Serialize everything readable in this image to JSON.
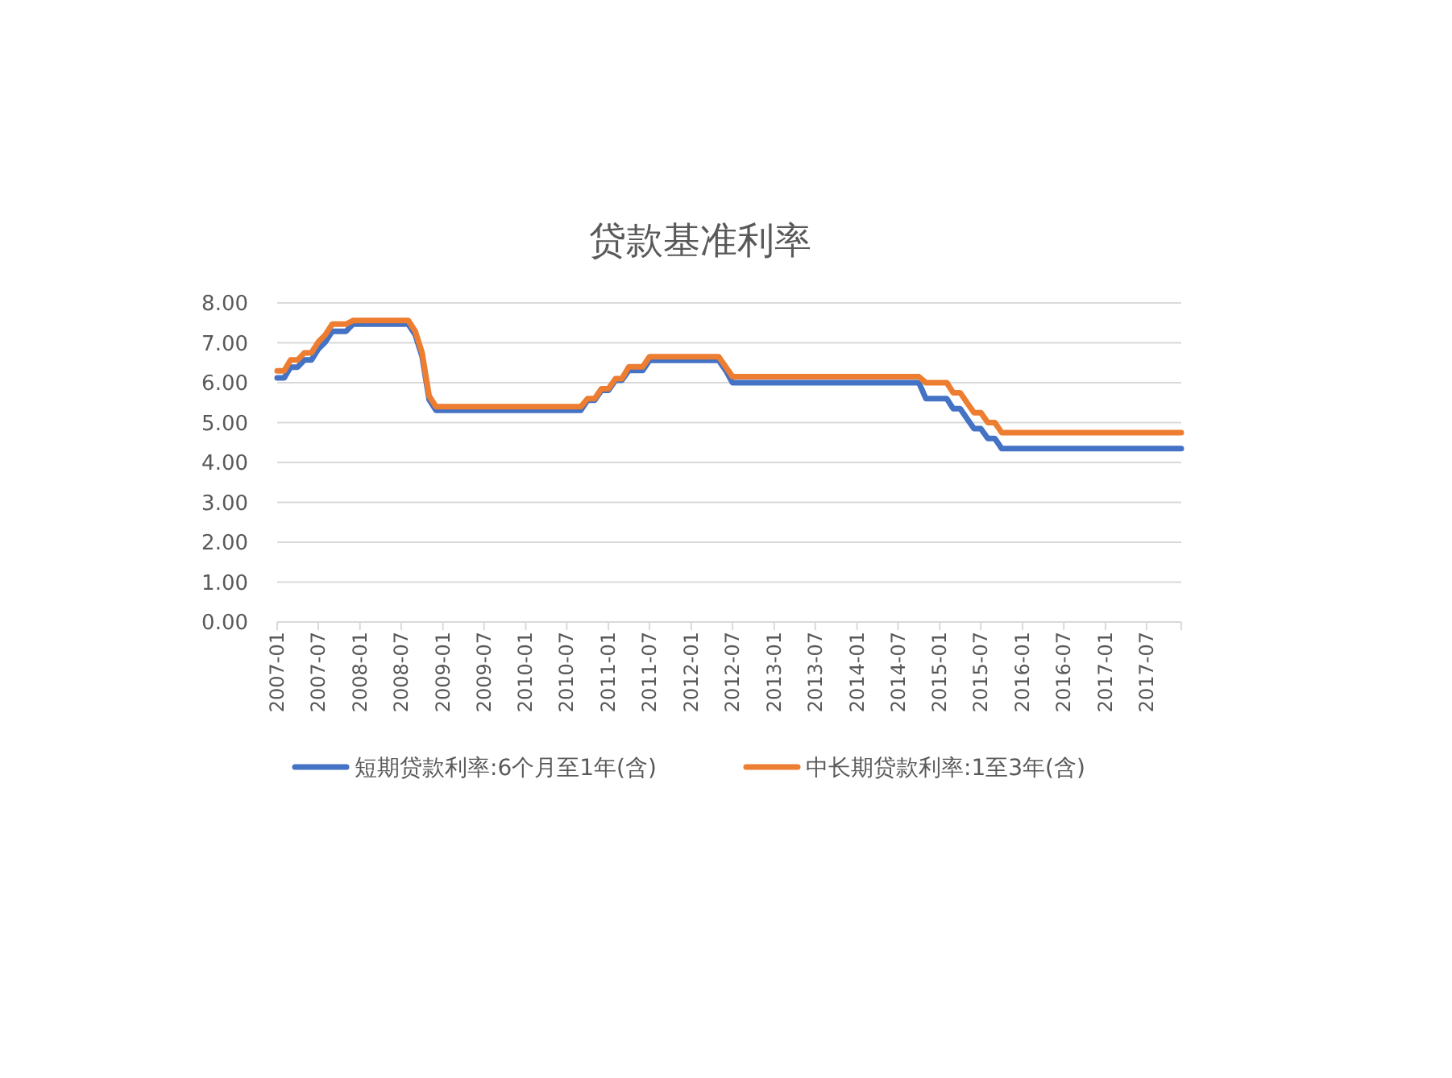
{
  "chart_data": {
    "type": "line",
    "title": "贷款基准利率",
    "x": [
      "2007-01",
      "2007-02",
      "2007-03",
      "2007-04",
      "2007-05",
      "2007-06",
      "2007-07",
      "2007-08",
      "2007-09",
      "2007-10",
      "2007-11",
      "2007-12",
      "2008-01",
      "2008-02",
      "2008-03",
      "2008-04",
      "2008-05",
      "2008-06",
      "2008-07",
      "2008-08",
      "2008-09",
      "2008-10",
      "2008-11",
      "2008-12",
      "2009-01",
      "2009-02",
      "2009-03",
      "2009-04",
      "2009-05",
      "2009-06",
      "2009-07",
      "2009-08",
      "2009-09",
      "2009-10",
      "2009-11",
      "2009-12",
      "2010-01",
      "2010-02",
      "2010-03",
      "2010-04",
      "2010-05",
      "2010-06",
      "2010-07",
      "2010-08",
      "2010-09",
      "2010-10",
      "2010-11",
      "2010-12",
      "2011-01",
      "2011-02",
      "2011-03",
      "2011-04",
      "2011-05",
      "2011-06",
      "2011-07",
      "2011-08",
      "2011-09",
      "2011-10",
      "2011-11",
      "2011-12",
      "2012-01",
      "2012-02",
      "2012-03",
      "2012-04",
      "2012-05",
      "2012-06",
      "2012-07",
      "2012-08",
      "2012-09",
      "2012-10",
      "2012-11",
      "2012-12",
      "2013-01",
      "2013-02",
      "2013-03",
      "2013-04",
      "2013-05",
      "2013-06",
      "2013-07",
      "2013-08",
      "2013-09",
      "2013-10",
      "2013-11",
      "2013-12",
      "2014-01",
      "2014-02",
      "2014-03",
      "2014-04",
      "2014-05",
      "2014-06",
      "2014-07",
      "2014-08",
      "2014-09",
      "2014-10",
      "2014-11",
      "2014-12",
      "2015-01",
      "2015-02",
      "2015-03",
      "2015-04",
      "2015-05",
      "2015-06",
      "2015-07",
      "2015-08",
      "2015-09",
      "2015-10",
      "2015-11",
      "2015-12",
      "2016-01",
      "2016-02",
      "2016-03",
      "2016-04",
      "2016-05",
      "2016-06",
      "2016-07",
      "2016-08",
      "2016-09",
      "2016-10",
      "2016-11",
      "2016-12",
      "2017-01",
      "2017-02",
      "2017-03",
      "2017-04",
      "2017-05",
      "2017-06",
      "2017-07",
      "2017-08",
      "2017-09",
      "2017-10",
      "2017-11",
      "2017-12"
    ],
    "series": [
      {
        "name": "短期贷款利率:6个月至1年(含)",
        "color": "#4472c4",
        "values": [
          6.12,
          6.12,
          6.39,
          6.39,
          6.57,
          6.57,
          6.84,
          7.02,
          7.29,
          7.29,
          7.29,
          7.47,
          7.47,
          7.47,
          7.47,
          7.47,
          7.47,
          7.47,
          7.47,
          7.47,
          7.2,
          6.66,
          5.58,
          5.31,
          5.31,
          5.31,
          5.31,
          5.31,
          5.31,
          5.31,
          5.31,
          5.31,
          5.31,
          5.31,
          5.31,
          5.31,
          5.31,
          5.31,
          5.31,
          5.31,
          5.31,
          5.31,
          5.31,
          5.31,
          5.31,
          5.56,
          5.56,
          5.81,
          5.81,
          6.06,
          6.06,
          6.31,
          6.31,
          6.31,
          6.56,
          6.56,
          6.56,
          6.56,
          6.56,
          6.56,
          6.56,
          6.56,
          6.56,
          6.56,
          6.56,
          6.31,
          6.0,
          6.0,
          6.0,
          6.0,
          6.0,
          6.0,
          6.0,
          6.0,
          6.0,
          6.0,
          6.0,
          6.0,
          6.0,
          6.0,
          6.0,
          6.0,
          6.0,
          6.0,
          6.0,
          6.0,
          6.0,
          6.0,
          6.0,
          6.0,
          6.0,
          6.0,
          6.0,
          6.0,
          5.6,
          5.6,
          5.6,
          5.6,
          5.35,
          5.35,
          5.1,
          4.85,
          4.85,
          4.6,
          4.6,
          4.35,
          4.35,
          4.35,
          4.35,
          4.35,
          4.35,
          4.35,
          4.35,
          4.35,
          4.35,
          4.35,
          4.35,
          4.35,
          4.35,
          4.35,
          4.35,
          4.35,
          4.35,
          4.35,
          4.35,
          4.35,
          4.35,
          4.35,
          4.35,
          4.35,
          4.35,
          4.35
        ]
      },
      {
        "name": "中长期贷款利率:1至3年(含)",
        "color": "#ed7d31",
        "values": [
          6.3,
          6.3,
          6.57,
          6.57,
          6.75,
          6.75,
          7.02,
          7.2,
          7.47,
          7.47,
          7.47,
          7.56,
          7.56,
          7.56,
          7.56,
          7.56,
          7.56,
          7.56,
          7.56,
          7.56,
          7.29,
          6.75,
          5.67,
          5.4,
          5.4,
          5.4,
          5.4,
          5.4,
          5.4,
          5.4,
          5.4,
          5.4,
          5.4,
          5.4,
          5.4,
          5.4,
          5.4,
          5.4,
          5.4,
          5.4,
          5.4,
          5.4,
          5.4,
          5.4,
          5.4,
          5.6,
          5.6,
          5.85,
          5.85,
          6.1,
          6.1,
          6.4,
          6.4,
          6.4,
          6.65,
          6.65,
          6.65,
          6.65,
          6.65,
          6.65,
          6.65,
          6.65,
          6.65,
          6.65,
          6.65,
          6.4,
          6.15,
          6.15,
          6.15,
          6.15,
          6.15,
          6.15,
          6.15,
          6.15,
          6.15,
          6.15,
          6.15,
          6.15,
          6.15,
          6.15,
          6.15,
          6.15,
          6.15,
          6.15,
          6.15,
          6.15,
          6.15,
          6.15,
          6.15,
          6.15,
          6.15,
          6.15,
          6.15,
          6.15,
          6.0,
          6.0,
          6.0,
          6.0,
          5.75,
          5.75,
          5.5,
          5.25,
          5.25,
          5.0,
          5.0,
          4.75,
          4.75,
          4.75,
          4.75,
          4.75,
          4.75,
          4.75,
          4.75,
          4.75,
          4.75,
          4.75,
          4.75,
          4.75,
          4.75,
          4.75,
          4.75,
          4.75,
          4.75,
          4.75,
          4.75,
          4.75,
          4.75,
          4.75,
          4.75,
          4.75,
          4.75,
          4.75
        ]
      }
    ],
    "xlim": [
      "2007-01",
      "2017-12"
    ],
    "xticks": [
      "2007-01",
      "2007-07",
      "2008-01",
      "2008-07",
      "2009-01",
      "2009-07",
      "2010-01",
      "2010-07",
      "2011-01",
      "2011-07",
      "2012-01",
      "2012-07",
      "2013-01",
      "2013-07",
      "2014-01",
      "2014-07",
      "2015-01",
      "2015-07",
      "2016-01",
      "2016-07",
      "2017-01",
      "2017-07"
    ],
    "ylim": [
      0,
      8
    ],
    "yticks": [
      {
        "value": 0,
        "label": "0.00"
      },
      {
        "value": 1,
        "label": "1.00"
      },
      {
        "value": 2,
        "label": "2.00"
      },
      {
        "value": 3,
        "label": "3.00"
      },
      {
        "value": 4,
        "label": "4.00"
      },
      {
        "value": 5,
        "label": "5.00"
      },
      {
        "value": 6,
        "label": "6.00"
      },
      {
        "value": 7,
        "label": "7.00"
      },
      {
        "value": 8,
        "label": "8.00"
      }
    ],
    "grid": "y",
    "legend": "bottom"
  }
}
